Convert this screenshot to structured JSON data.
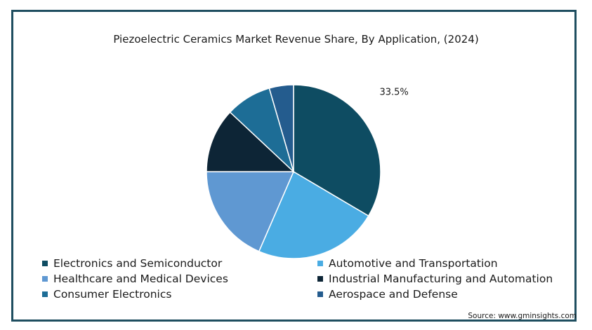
{
  "chart_data": {
    "type": "pie",
    "title": "Piezoelectric Ceramics Market Revenue Share, By Application, (2024)",
    "categories": [
      "Electronics and Semiconductor",
      "Automotive and Transportation",
      "Healthcare and Medical Devices",
      "Industrial Manufacturing and Automation",
      "Consumer Electronics",
      "Aerospace and Defense"
    ],
    "values": [
      33.5,
      23.0,
      18.5,
      12.0,
      8.5,
      4.5
    ],
    "colors": [
      "#0e4c62",
      "#4aace3",
      "#5f98d2",
      "#0d2536",
      "#1d6d96",
      "#245c8e"
    ],
    "data_labels": [
      "33.5%",
      "",
      "",
      "",
      "",
      ""
    ],
    "legend_placement": "bottom"
  },
  "source": "Source: www.gminsights.com"
}
